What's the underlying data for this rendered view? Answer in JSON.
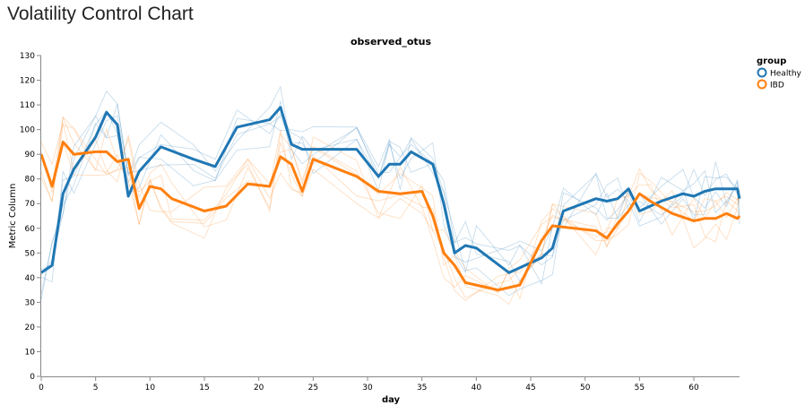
{
  "page": {
    "title": "Volatility Control Chart"
  },
  "colors": {
    "Healthy": "#1f77b4",
    "IBD": "#ff7f0e"
  },
  "chart_data": {
    "type": "line",
    "title": "observed_otus",
    "xlabel": "day",
    "ylabel": "Metric Column",
    "xlim": [
      0,
      64
    ],
    "ylim": [
      0,
      130
    ],
    "xticks": [
      0,
      5,
      10,
      15,
      20,
      25,
      30,
      35,
      40,
      45,
      50,
      55,
      60
    ],
    "yticks": [
      0,
      10,
      20,
      30,
      40,
      50,
      60,
      70,
      80,
      90,
      100,
      110,
      120,
      130
    ],
    "grid": false,
    "legend": {
      "title": "group",
      "position": "top-right"
    },
    "series": [
      {
        "name": "Healthy",
        "color": "#1f77b4",
        "points": [
          [
            0,
            42
          ],
          [
            1,
            45
          ],
          [
            2,
            74
          ],
          [
            3,
            84
          ],
          [
            5,
            97
          ],
          [
            6,
            107
          ],
          [
            7,
            102
          ],
          [
            8,
            73
          ],
          [
            9,
            83
          ],
          [
            11,
            93
          ],
          [
            14,
            88
          ],
          [
            16,
            85
          ],
          [
            18,
            101
          ],
          [
            21,
            104
          ],
          [
            22,
            109
          ],
          [
            23,
            94
          ],
          [
            24,
            92
          ],
          [
            25,
            92
          ],
          [
            29,
            92
          ],
          [
            31,
            81
          ],
          [
            32,
            86
          ],
          [
            33,
            86
          ],
          [
            34,
            91
          ],
          [
            36,
            86
          ],
          [
            37,
            70
          ],
          [
            38,
            50
          ],
          [
            39,
            53
          ],
          [
            40,
            52
          ],
          [
            43,
            42
          ],
          [
            44,
            44
          ],
          [
            46,
            48
          ],
          [
            47,
            52
          ],
          [
            48,
            67
          ],
          [
            51,
            72
          ],
          [
            52,
            71
          ],
          [
            53,
            72
          ],
          [
            54,
            76
          ],
          [
            55,
            67
          ],
          [
            57,
            71
          ],
          [
            59,
            74
          ],
          [
            60,
            73
          ],
          [
            61,
            75
          ],
          [
            62,
            76
          ],
          [
            63,
            76
          ],
          [
            64,
            76
          ],
          [
            65,
            72
          ]
        ]
      },
      {
        "name": "IBD",
        "color": "#ff7f0e",
        "points": [
          [
            0,
            90
          ],
          [
            1,
            77
          ],
          [
            2,
            95
          ],
          [
            3,
            90
          ],
          [
            5,
            91
          ],
          [
            6,
            91
          ],
          [
            7,
            87
          ],
          [
            8,
            88
          ],
          [
            9,
            68
          ],
          [
            10,
            77
          ],
          [
            11,
            76
          ],
          [
            12,
            72
          ],
          [
            15,
            67
          ],
          [
            17,
            69
          ],
          [
            19,
            78
          ],
          [
            21,
            77
          ],
          [
            22,
            89
          ],
          [
            23,
            86
          ],
          [
            24,
            75
          ],
          [
            25,
            88
          ],
          [
            29,
            81
          ],
          [
            31,
            75
          ],
          [
            33,
            74
          ],
          [
            35,
            75
          ],
          [
            36,
            65
          ],
          [
            37,
            50
          ],
          [
            38,
            45
          ],
          [
            39,
            38
          ],
          [
            42,
            35
          ],
          [
            43,
            36
          ],
          [
            44,
            37
          ],
          [
            46,
            55
          ],
          [
            47,
            61
          ],
          [
            51,
            59
          ],
          [
            52,
            56
          ],
          [
            53,
            62
          ],
          [
            54,
            67
          ],
          [
            55,
            74
          ],
          [
            56,
            71
          ],
          [
            58,
            66
          ],
          [
            60,
            63
          ],
          [
            61,
            64
          ],
          [
            62,
            64
          ],
          [
            63,
            66
          ],
          [
            64,
            64
          ],
          [
            65,
            65
          ]
        ]
      }
    ]
  }
}
